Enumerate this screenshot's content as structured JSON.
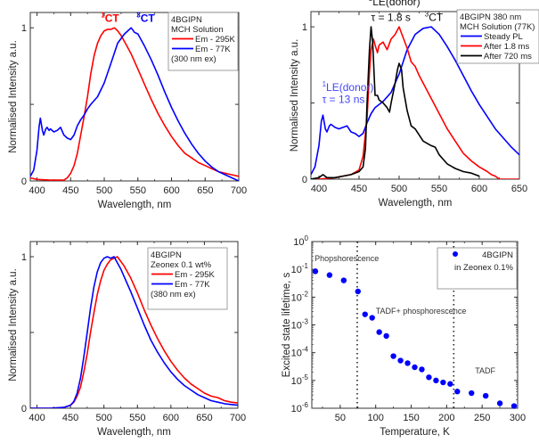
{
  "chart_data": [
    {
      "id": "panel-a",
      "type": "line",
      "title": "",
      "xlabel": "Wavelength, nm",
      "ylabel": "Normalised Intensity a.u.",
      "xlim": [
        390,
        700
      ],
      "ylim": [
        0,
        1.1
      ],
      "xticks": [
        400,
        450,
        500,
        550,
        600,
        650,
        700
      ],
      "yticks": [
        0,
        1
      ],
      "legend": {
        "placement": "top-right",
        "header": [
          "4BGIPN",
          "MCH Solution"
        ],
        "footer": [
          "(300 nm ex)"
        ]
      },
      "annotations": [
        {
          "sup": "1",
          "text": "CT",
          "x": 495,
          "y": 1.04,
          "color": "#ff0000"
        },
        {
          "sup": "3",
          "text": "CT",
          "x": 548,
          "y": 1.04,
          "color": "#0000ff"
        }
      ],
      "series": [
        {
          "name": "Em - 295K",
          "color": "#ff0000",
          "x": [
            390,
            400,
            420,
            440,
            445,
            450,
            455,
            460,
            465,
            470,
            475,
            480,
            485,
            490,
            495,
            500,
            505,
            510,
            515,
            520,
            525,
            530,
            540,
            550,
            560,
            570,
            580,
            590,
            600,
            610,
            620,
            630,
            640,
            650,
            660,
            670,
            680,
            690,
            700
          ],
          "y": [
            0.02,
            0.01,
            0.005,
            0.005,
            0.02,
            0.05,
            0.1,
            0.18,
            0.3,
            0.42,
            0.55,
            0.7,
            0.82,
            0.9,
            0.95,
            0.98,
            0.99,
            0.99,
            1.0,
            0.98,
            0.95,
            0.91,
            0.83,
            0.73,
            0.63,
            0.53,
            0.44,
            0.36,
            0.29,
            0.23,
            0.18,
            0.15,
            0.12,
            0.1,
            0.08,
            0.06,
            0.05,
            0.04,
            0.03
          ]
        },
        {
          "name": "Em - 77K",
          "color": "#0000ff",
          "x": [
            390,
            395,
            400,
            403,
            405,
            408,
            410,
            413,
            415,
            418,
            420,
            425,
            430,
            435,
            440,
            445,
            450,
            455,
            460,
            465,
            470,
            475,
            480,
            490,
            500,
            510,
            520,
            530,
            535,
            540,
            545,
            550,
            560,
            570,
            580,
            590,
            600,
            610,
            620,
            630,
            640,
            650,
            660,
            670,
            680,
            690,
            700
          ],
          "y": [
            0.03,
            0.07,
            0.2,
            0.35,
            0.41,
            0.33,
            0.3,
            0.34,
            0.35,
            0.33,
            0.34,
            0.32,
            0.33,
            0.35,
            0.3,
            0.28,
            0.27,
            0.3,
            0.36,
            0.4,
            0.43,
            0.47,
            0.5,
            0.55,
            0.64,
            0.77,
            0.9,
            0.96,
            0.98,
            1.0,
            0.97,
            0.96,
            0.88,
            0.79,
            0.69,
            0.58,
            0.48,
            0.39,
            0.31,
            0.24,
            0.18,
            0.13,
            0.09,
            0.06,
            0.04,
            0.02,
            0.0
          ]
        }
      ]
    },
    {
      "id": "panel-b",
      "type": "line",
      "title": "",
      "xlabel": "Wavelength, nm",
      "ylabel": "Normalised Intensity a.u.",
      "xlim": [
        390,
        650
      ],
      "ylim": [
        0,
        1.1
      ],
      "xticks": [
        400,
        450,
        500,
        550,
        600,
        650
      ],
      "yticks": [
        0,
        1
      ],
      "legend": {
        "placement": "top-right",
        "header": [
          "4BGIPN 380 nm",
          "MCH Solution (77K)"
        ],
        "footer": []
      },
      "annotations": [
        {
          "sup": "3",
          "text": "LE(donor)",
          "x": 462,
          "y": 1.14,
          "color": "#111111"
        },
        {
          "sup": "",
          "text": "τ = 1.8 s",
          "x": 465,
          "y": 1.04,
          "color": "#111111"
        },
        {
          "sup": "3",
          "text": "CT",
          "x": 532,
          "y": 1.04,
          "color": "#111111"
        },
        {
          "sup": "1",
          "text": "LE(donor)",
          "x": 404,
          "y": 0.58,
          "color": "#4444ff"
        },
        {
          "sup": "",
          "text": "τ = 13 ns",
          "x": 404,
          "y": 0.5,
          "color": "#4444ff"
        }
      ],
      "series": [
        {
          "name": "Steady PL",
          "color": "#0000ff",
          "x": [
            390,
            395,
            400,
            403,
            405,
            408,
            410,
            413,
            415,
            420,
            425,
            430,
            435,
            440,
            445,
            450,
            455,
            460,
            465,
            470,
            480,
            490,
            500,
            510,
            520,
            530,
            540,
            550,
            560,
            570,
            580,
            590,
            600,
            610,
            620,
            630,
            640,
            650
          ],
          "y": [
            0.03,
            0.08,
            0.22,
            0.38,
            0.42,
            0.33,
            0.31,
            0.35,
            0.36,
            0.34,
            0.33,
            0.34,
            0.35,
            0.31,
            0.3,
            0.28,
            0.3,
            0.37,
            0.43,
            0.47,
            0.51,
            0.57,
            0.69,
            0.85,
            0.95,
            0.99,
            1.0,
            0.95,
            0.87,
            0.78,
            0.68,
            0.58,
            0.49,
            0.41,
            0.33,
            0.27,
            0.21,
            0.16
          ]
        },
        {
          "name": "After 1.8 ms",
          "color": "#ff0000",
          "x": [
            390,
            400,
            420,
            440,
            450,
            455,
            460,
            463,
            465,
            468,
            470,
            473,
            475,
            480,
            485,
            490,
            495,
            500,
            505,
            510,
            515,
            520,
            525,
            530,
            540,
            550,
            560,
            570,
            580,
            590,
            600,
            610,
            615,
            620,
            625,
            630,
            640,
            650
          ],
          "y": [
            0.0,
            0.0,
            0.01,
            0.03,
            0.06,
            0.15,
            0.4,
            0.7,
            0.85,
            0.92,
            0.88,
            0.83,
            0.88,
            0.9,
            0.85,
            0.92,
            0.95,
            1.0,
            0.93,
            0.86,
            0.77,
            0.74,
            0.68,
            0.63,
            0.53,
            0.43,
            0.33,
            0.25,
            0.17,
            0.12,
            0.08,
            0.05,
            0.03,
            0.02,
            0.0,
            0.0,
            0.0,
            0.0
          ]
        },
        {
          "name": "After 720 ms",
          "color": "#000000",
          "x": [
            390,
            400,
            405,
            410,
            420,
            430,
            440,
            450,
            455,
            458,
            460,
            463,
            465,
            467,
            470,
            473,
            475,
            480,
            485,
            488,
            490,
            495,
            498,
            500,
            503,
            505,
            510,
            515,
            520,
            525,
            530,
            540,
            545,
            550,
            560,
            570,
            580,
            590,
            600
          ],
          "y": [
            0.0,
            0.01,
            0.03,
            0.01,
            0.01,
            0.02,
            0.03,
            0.05,
            0.08,
            0.2,
            0.5,
            0.85,
            1.0,
            0.9,
            0.55,
            0.55,
            0.52,
            0.5,
            0.47,
            0.44,
            0.5,
            0.63,
            0.72,
            0.76,
            0.72,
            0.6,
            0.45,
            0.35,
            0.33,
            0.29,
            0.25,
            0.22,
            0.21,
            0.16,
            0.1,
            0.07,
            0.05,
            0.04,
            0.02
          ]
        }
      ]
    },
    {
      "id": "panel-c",
      "type": "line",
      "title": "",
      "xlabel": "Wavelength, nm",
      "ylabel": "Normalised Intensity a.u.",
      "xlim": [
        390,
        700
      ],
      "ylim": [
        0,
        1.1
      ],
      "xticks": [
        400,
        450,
        500,
        550,
        600,
        650,
        700
      ],
      "yticks": [
        0,
        1
      ],
      "legend": {
        "placement": "top-right",
        "header": [
          "4BGIPN",
          "Zeonex 0.1 wt%"
        ],
        "footer": [
          "(380 nm ex)"
        ]
      },
      "annotations": [],
      "series": [
        {
          "name": "Em - 295K",
          "color": "#ff0000",
          "x": [
            390,
            420,
            440,
            450,
            455,
            460,
            465,
            470,
            475,
            480,
            485,
            490,
            495,
            500,
            505,
            510,
            515,
            520,
            525,
            530,
            540,
            550,
            560,
            570,
            580,
            590,
            600,
            610,
            620,
            630,
            640,
            650,
            660,
            670,
            680,
            690,
            700
          ],
          "y": [
            0.0,
            0.0,
            0.005,
            0.02,
            0.04,
            0.08,
            0.14,
            0.24,
            0.36,
            0.5,
            0.63,
            0.75,
            0.84,
            0.91,
            0.95,
            0.98,
            0.99,
            1.0,
            0.97,
            0.94,
            0.86,
            0.76,
            0.65,
            0.55,
            0.46,
            0.38,
            0.31,
            0.25,
            0.2,
            0.16,
            0.13,
            0.1,
            0.08,
            0.07,
            0.05,
            0.04,
            0.035
          ]
        },
        {
          "name": "Em - 77K",
          "color": "#0000ff",
          "x": [
            390,
            420,
            440,
            450,
            455,
            460,
            465,
            470,
            475,
            480,
            485,
            490,
            495,
            500,
            505,
            510,
            515,
            520,
            525,
            530,
            540,
            550,
            560,
            570,
            580,
            590,
            600,
            610,
            620,
            630,
            640,
            650,
            660,
            670,
            680,
            690,
            700
          ],
          "y": [
            0.0,
            0.0,
            0.005,
            0.02,
            0.045,
            0.1,
            0.2,
            0.34,
            0.5,
            0.66,
            0.8,
            0.9,
            0.96,
            0.99,
            1.0,
            0.99,
            1.0,
            0.96,
            0.92,
            0.87,
            0.77,
            0.66,
            0.55,
            0.45,
            0.37,
            0.3,
            0.24,
            0.19,
            0.15,
            0.12,
            0.09,
            0.07,
            0.05,
            0.04,
            0.03,
            0.025,
            0.02
          ]
        }
      ]
    },
    {
      "id": "panel-d",
      "type": "scatter",
      "title": "",
      "xlabel": "Temperature, K",
      "ylabel": "Excited state lifetime, s",
      "yscale": "log",
      "xlim": [
        10,
        300
      ],
      "ylim": [
        1e-06,
        1
      ],
      "xticks": [
        50,
        100,
        150,
        200,
        250,
        300
      ],
      "yticks_exp": [
        0,
        -1,
        -2,
        -3,
        -4,
        -5,
        -6
      ],
      "legend": {
        "placement": "top-right",
        "header": [],
        "footer": [
          "in Zeonex 0.1%"
        ]
      },
      "vlines": [
        74,
        210
      ],
      "region_labels": [
        {
          "text": "Phopshorescence",
          "x": 14,
          "y": 0.2
        },
        {
          "text": "TADF+ phosphorescence",
          "x": 100,
          "y": 0.0025
        },
        {
          "text": "TADF",
          "x": 240,
          "y": 1.8e-05
        }
      ],
      "series": [
        {
          "name": "4BGIPN",
          "color": "#0000ff",
          "x": [
            15,
            35,
            55,
            75,
            85,
            95,
            105,
            115,
            125,
            135,
            145,
            155,
            165,
            175,
            185,
            195,
            205,
            215,
            235,
            255,
            275,
            295
          ],
          "y": [
            0.085,
            0.062,
            0.04,
            0.016,
            0.0024,
            0.0018,
            0.00055,
            0.0004,
            7.5e-05,
            5.2e-05,
            4.2e-05,
            3e-05,
            2.5e-05,
            1.3e-05,
            1e-05,
            8.5e-06,
            7.5e-06,
            4e-06,
            3.5e-06,
            2.8e-06,
            1.5e-06,
            1.2e-06
          ]
        }
      ]
    }
  ]
}
